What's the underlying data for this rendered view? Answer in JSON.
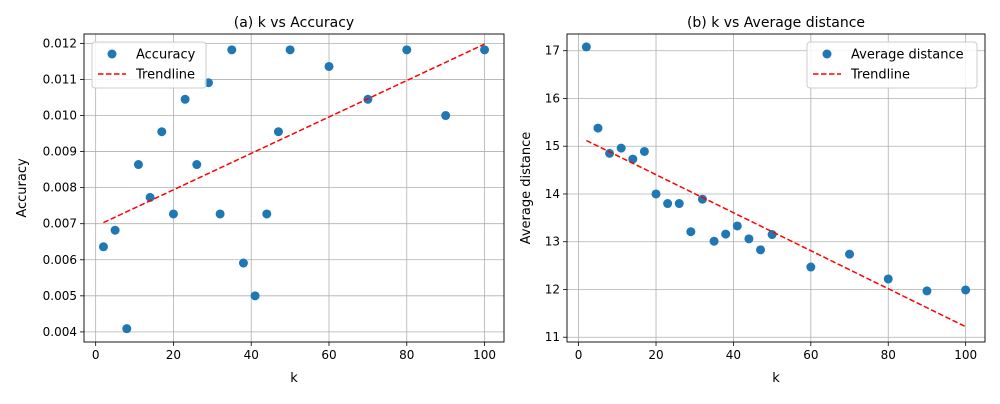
{
  "colors": {
    "point": "#1f77b4",
    "trend": "#ff0000",
    "grid": "#b0b0b0",
    "axis": "#000000"
  },
  "chart_data": [
    {
      "type": "scatter",
      "title": "(a) k vs Accuracy",
      "xlabel": "k",
      "ylabel": "Accuracy",
      "xlim": [
        -3,
        105
      ],
      "ylim": [
        0.00372,
        0.01226
      ],
      "xticks": [
        0,
        20,
        40,
        60,
        80,
        100
      ],
      "xtick_labels": [
        "0",
        "20",
        "40",
        "60",
        "80",
        "100"
      ],
      "yticks": [
        0.004,
        0.005,
        0.006,
        0.007,
        0.008,
        0.009,
        0.01,
        0.011,
        0.012
      ],
      "ytick_labels": [
        "0.004",
        "0.005",
        "0.006",
        "0.007",
        "0.008",
        "0.009",
        "0.010",
        "0.011",
        "0.012"
      ],
      "grid": true,
      "legend_position": "top-left",
      "series": [
        {
          "name": "Accuracy",
          "style": "markers",
          "x": [
            2,
            5,
            8,
            11,
            14,
            17,
            20,
            23,
            26,
            29,
            32,
            35,
            38,
            41,
            44,
            47,
            50,
            60,
            70,
            80,
            90,
            100
          ],
          "y": [
            0.00636,
            0.00682,
            0.00409,
            0.00864,
            0.00773,
            0.00955,
            0.00727,
            0.01045,
            0.00864,
            0.01091,
            0.00727,
            0.01182,
            0.00591,
            0.005,
            0.00727,
            0.00955,
            0.01182,
            0.01136,
            0.01045,
            0.01182,
            0.01,
            0.01182
          ]
        },
        {
          "name": "Trendline",
          "style": "dashed-line",
          "x": [
            2,
            100
          ],
          "y": [
            0.00703,
            0.01198
          ]
        }
      ]
    },
    {
      "type": "scatter",
      "title": "(b) k vs Average distance",
      "xlabel": "k",
      "ylabel": "Average distance",
      "xlim": [
        -3,
        105
      ],
      "ylim": [
        10.9,
        17.35
      ],
      "xticks": [
        0,
        20,
        40,
        60,
        80,
        100
      ],
      "xtick_labels": [
        "0",
        "20",
        "40",
        "60",
        "80",
        "100"
      ],
      "yticks": [
        11,
        12,
        13,
        14,
        15,
        16,
        17
      ],
      "ytick_labels": [
        "11",
        "12",
        "13",
        "14",
        "15",
        "16",
        "17"
      ],
      "grid": true,
      "legend_position": "top-right",
      "series": [
        {
          "name": "Average distance",
          "style": "markers",
          "x": [
            2,
            5,
            8,
            11,
            14,
            17,
            20,
            23,
            26,
            29,
            32,
            35,
            38,
            41,
            44,
            47,
            50,
            60,
            70,
            80,
            90,
            100
          ],
          "y": [
            17.08,
            15.38,
            14.85,
            14.96,
            14.73,
            14.89,
            14.0,
            13.8,
            13.8,
            13.21,
            13.89,
            13.01,
            13.16,
            13.33,
            13.06,
            12.83,
            13.15,
            12.47,
            12.74,
            12.22,
            11.97,
            11.99
          ]
        },
        {
          "name": "Trendline",
          "style": "dashed-line",
          "x": [
            2,
            100
          ],
          "y": [
            15.12,
            11.22
          ]
        }
      ]
    }
  ]
}
